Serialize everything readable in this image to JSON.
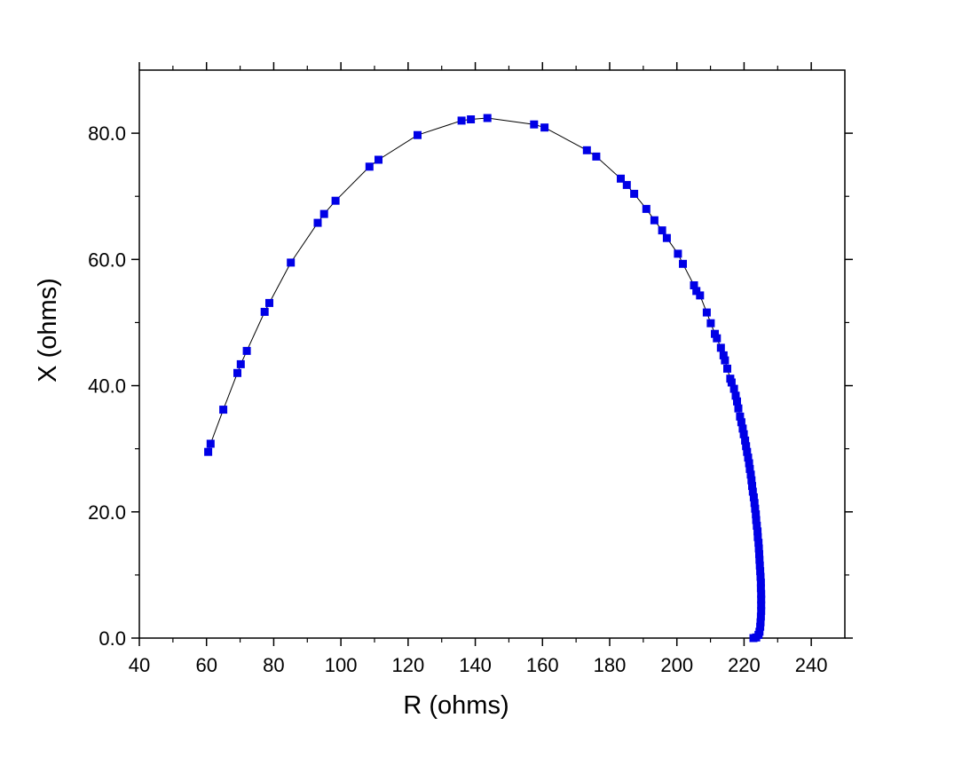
{
  "chart_data": {
    "type": "scatter",
    "title": "",
    "xlabel": "R (ohms)",
    "ylabel": "X (ohms)",
    "xlim": [
      40,
      250
    ],
    "ylim": [
      0,
      90
    ],
    "x_ticks": [
      40,
      60,
      80,
      100,
      120,
      140,
      160,
      180,
      200,
      220,
      240
    ],
    "x_tick_labels": [
      "40",
      "60",
      "80",
      "100",
      "120",
      "140",
      "160",
      "180",
      "200",
      "220",
      "240"
    ],
    "y_ticks": [
      0,
      20,
      40,
      60,
      80
    ],
    "y_tick_labels": [
      "0.0",
      "20.0",
      "40.0",
      "60.0",
      "80.0"
    ],
    "grid": false,
    "legend": "none",
    "marker": "square",
    "connected": true,
    "line_color": "#000000",
    "marker_color": "#0000e6",
    "series": [
      {
        "points": [
          [
            60.5,
            29.5
          ],
          [
            61.2,
            30.8
          ],
          [
            65.0,
            36.2
          ],
          [
            69.2,
            42.0
          ],
          [
            70.2,
            43.4
          ],
          [
            72.0,
            45.5
          ],
          [
            77.3,
            51.7
          ],
          [
            78.7,
            53.1
          ],
          [
            85.1,
            59.5
          ],
          [
            93.1,
            65.8
          ],
          [
            95.0,
            67.2
          ],
          [
            98.4,
            69.3
          ],
          [
            108.5,
            74.7
          ],
          [
            111.2,
            75.8
          ],
          [
            122.8,
            79.7
          ],
          [
            135.9,
            82.0
          ],
          [
            138.7,
            82.2
          ],
          [
            143.6,
            82.4
          ],
          [
            157.5,
            81.4
          ],
          [
            160.6,
            80.9
          ],
          [
            173.2,
            77.3
          ],
          [
            176.0,
            76.3
          ],
          [
            183.3,
            72.8
          ],
          [
            185.1,
            71.8
          ],
          [
            187.3,
            70.4
          ],
          [
            190.9,
            68.0
          ],
          [
            193.3,
            66.2
          ],
          [
            195.6,
            64.6
          ],
          [
            197.0,
            63.4
          ],
          [
            200.3,
            60.9
          ],
          [
            201.8,
            59.3
          ],
          [
            205.1,
            55.9
          ],
          [
            205.8,
            55.0
          ],
          [
            206.9,
            54.3
          ],
          [
            208.9,
            51.6
          ],
          [
            210.1,
            49.9
          ],
          [
            211.3,
            48.2
          ],
          [
            211.9,
            47.5
          ],
          [
            213.1,
            46.0
          ],
          [
            213.9,
            44.8
          ],
          [
            214.3,
            44.0
          ],
          [
            215.0,
            42.7
          ],
          [
            215.9,
            41.1
          ],
          [
            216.3,
            40.5
          ],
          [
            217.0,
            39.5
          ],
          [
            217.5,
            38.4
          ],
          [
            217.9,
            37.5
          ],
          [
            218.3,
            36.4
          ],
          [
            218.8,
            35.1
          ],
          [
            219.2,
            34.2
          ],
          [
            219.6,
            33.2
          ],
          [
            219.9,
            32.3
          ],
          [
            220.3,
            31.3
          ],
          [
            220.6,
            30.4
          ],
          [
            220.9,
            29.5
          ],
          [
            221.2,
            28.6
          ],
          [
            221.5,
            27.7
          ],
          [
            221.7,
            26.8
          ],
          [
            222.0,
            25.9
          ],
          [
            222.2,
            25.0
          ],
          [
            222.4,
            24.1
          ],
          [
            222.6,
            23.2
          ],
          [
            222.9,
            22.3
          ],
          [
            223.1,
            21.4
          ],
          [
            223.3,
            20.5
          ],
          [
            223.5,
            19.6
          ],
          [
            223.6,
            18.7
          ],
          [
            223.8,
            17.8
          ],
          [
            224.0,
            16.9
          ],
          [
            224.1,
            16.0
          ],
          [
            224.3,
            15.1
          ],
          [
            224.4,
            14.2
          ],
          [
            224.5,
            13.3
          ],
          [
            224.6,
            12.4
          ],
          [
            224.7,
            11.5
          ],
          [
            224.8,
            10.6
          ],
          [
            224.9,
            9.7
          ],
          [
            225.0,
            8.8
          ],
          [
            225.0,
            7.9
          ],
          [
            225.1,
            7.0
          ],
          [
            225.1,
            6.1
          ],
          [
            225.1,
            5.2
          ],
          [
            225.1,
            4.3
          ],
          [
            225.0,
            3.4
          ],
          [
            224.9,
            2.5
          ],
          [
            224.8,
            1.8
          ],
          [
            224.6,
            1.0
          ],
          [
            224.3,
            0.5
          ],
          [
            223.6,
            0.1
          ],
          [
            222.8,
            0.0
          ]
        ]
      }
    ]
  }
}
